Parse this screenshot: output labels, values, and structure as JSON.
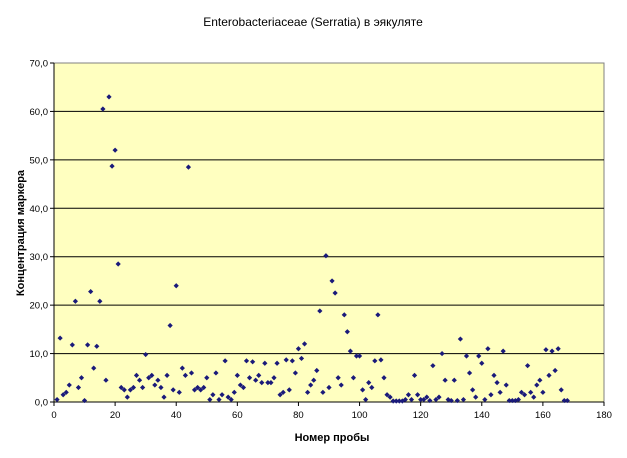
{
  "chart_data": {
    "type": "scatter",
    "title": "Enterobacteriaceae (Serratia) в эякуляте",
    "xlabel": "Номер пробы",
    "ylabel": "Концентрация маркера",
    "xlim": [
      0,
      180
    ],
    "ylim": [
      0,
      70
    ],
    "x_ticks": [
      0,
      20,
      40,
      60,
      80,
      100,
      120,
      140,
      160,
      180
    ],
    "x_tick_labels": [
      "0",
      "20",
      "40",
      "60",
      "80",
      "100",
      "120",
      "140",
      "160",
      "180"
    ],
    "y_ticks": [
      0,
      10,
      20,
      30,
      40,
      50,
      60,
      70
    ],
    "y_tick_labels": [
      "0,0",
      "10,0",
      "20,0",
      "30,0",
      "40,0",
      "50,0",
      "60,0",
      "70,0"
    ],
    "grid": "horizontal",
    "legend": "none",
    "plot_background": "#FFFFC0",
    "marker_color": "#1A1A7A",
    "series": [
      {
        "points": [
          [
            1,
            0.5
          ],
          [
            2,
            13.2
          ],
          [
            3,
            1.5
          ],
          [
            4,
            2
          ],
          [
            5,
            3.5
          ],
          [
            6,
            11.8
          ],
          [
            7,
            20.8
          ],
          [
            8,
            3
          ],
          [
            9,
            5
          ],
          [
            10,
            0.3
          ],
          [
            11,
            11.8
          ],
          [
            12,
            22.8
          ],
          [
            13,
            7
          ],
          [
            14,
            11.5
          ],
          [
            15,
            20.8
          ],
          [
            16,
            60.5
          ],
          [
            17,
            4.5
          ],
          [
            18,
            63
          ],
          [
            19,
            48.7
          ],
          [
            20,
            52
          ],
          [
            21,
            28.5
          ],
          [
            22,
            3
          ],
          [
            23,
            2.5
          ],
          [
            24,
            1
          ],
          [
            25,
            2.5
          ],
          [
            26,
            3
          ],
          [
            27,
            5.5
          ],
          [
            28,
            4.5
          ],
          [
            29,
            3
          ],
          [
            30,
            9.8
          ],
          [
            31,
            5
          ],
          [
            32,
            5.5
          ],
          [
            33,
            3.5
          ],
          [
            34,
            4.5
          ],
          [
            35,
            3
          ],
          [
            36,
            1
          ],
          [
            37,
            5.5
          ],
          [
            38,
            15.8
          ],
          [
            39,
            2.5
          ],
          [
            40,
            24
          ],
          [
            41,
            2
          ],
          [
            42,
            7
          ],
          [
            43,
            5.5
          ],
          [
            44,
            48.5
          ],
          [
            45,
            6
          ],
          [
            46,
            2.5
          ],
          [
            47,
            3
          ],
          [
            48,
            2.5
          ],
          [
            49,
            3
          ],
          [
            50,
            5
          ],
          [
            51,
            0.5
          ],
          [
            52,
            1.5
          ],
          [
            53,
            6
          ],
          [
            54,
            0.5
          ],
          [
            55,
            1.5
          ],
          [
            56,
            8.5
          ],
          [
            57,
            1
          ],
          [
            58,
            0.5
          ],
          [
            59,
            2
          ],
          [
            60,
            5.5
          ],
          [
            61,
            3.5
          ],
          [
            62,
            3
          ],
          [
            63,
            8.5
          ],
          [
            64,
            5
          ],
          [
            65,
            8.3
          ],
          [
            66,
            4.5
          ],
          [
            67,
            5.5
          ],
          [
            68,
            4
          ],
          [
            69,
            8
          ],
          [
            70,
            4
          ],
          [
            71,
            4
          ],
          [
            72,
            5
          ],
          [
            73,
            8
          ],
          [
            74,
            1.5
          ],
          [
            75,
            2
          ],
          [
            76,
            8.7
          ],
          [
            77,
            2.5
          ],
          [
            78,
            8.5
          ],
          [
            79,
            6
          ],
          [
            80,
            11
          ],
          [
            81,
            9
          ],
          [
            82,
            12
          ],
          [
            83,
            2
          ],
          [
            84,
            3.5
          ],
          [
            85,
            4.5
          ],
          [
            86,
            6.5
          ],
          [
            87,
            18.8
          ],
          [
            88,
            2
          ],
          [
            89,
            30.2
          ],
          [
            90,
            3
          ],
          [
            91,
            25
          ],
          [
            92,
            22.5
          ],
          [
            93,
            5
          ],
          [
            94,
            3.5
          ],
          [
            95,
            18
          ],
          [
            96,
            14.5
          ],
          [
            97,
            10.5
          ],
          [
            98,
            5
          ],
          [
            99,
            9.5
          ],
          [
            100,
            9.5
          ],
          [
            101,
            2.5
          ],
          [
            102,
            0.5
          ],
          [
            103,
            4
          ],
          [
            104,
            3
          ],
          [
            105,
            8.5
          ],
          [
            106,
            18
          ],
          [
            107,
            8.7
          ],
          [
            108,
            5
          ],
          [
            109,
            1.5
          ],
          [
            110,
            1
          ],
          [
            111,
            0.2
          ],
          [
            112,
            0.2
          ],
          [
            113,
            0.2
          ],
          [
            114,
            0.2
          ],
          [
            115,
            0.5
          ],
          [
            116,
            1.5
          ],
          [
            117,
            0.5
          ],
          [
            118,
            5.5
          ],
          [
            119,
            1.5
          ],
          [
            120,
            0.5
          ],
          [
            121,
            0.5
          ],
          [
            122,
            1
          ],
          [
            123,
            0.3
          ],
          [
            124,
            7.5
          ],
          [
            125,
            0.5
          ],
          [
            126,
            1
          ],
          [
            127,
            10
          ],
          [
            128,
            4.5
          ],
          [
            129,
            0.5
          ],
          [
            130,
            0.3
          ],
          [
            131,
            4.5
          ],
          [
            132,
            0.3
          ],
          [
            133,
            13
          ],
          [
            134,
            0.5
          ],
          [
            135,
            9.5
          ],
          [
            136,
            6
          ],
          [
            137,
            2.5
          ],
          [
            138,
            1
          ],
          [
            139,
            9.5
          ],
          [
            140,
            8
          ],
          [
            141,
            0.5
          ],
          [
            142,
            11
          ],
          [
            143,
            1.5
          ],
          [
            144,
            5.5
          ],
          [
            145,
            4
          ],
          [
            146,
            2
          ],
          [
            147,
            10.5
          ],
          [
            148,
            3.5
          ],
          [
            149,
            0.3
          ],
          [
            150,
            0.3
          ],
          [
            151,
            0.3
          ],
          [
            152,
            0.5
          ],
          [
            153,
            2
          ],
          [
            154,
            1.5
          ],
          [
            155,
            7.5
          ],
          [
            156,
            2
          ],
          [
            157,
            1
          ],
          [
            158,
            3.5
          ],
          [
            159,
            4.5
          ],
          [
            160,
            2
          ],
          [
            161,
            10.8
          ],
          [
            162,
            5.5
          ],
          [
            163,
            10.5
          ],
          [
            164,
            6.5
          ],
          [
            165,
            11
          ],
          [
            166,
            2.5
          ],
          [
            167,
            0.3
          ],
          [
            168,
            0.3
          ]
        ]
      }
    ]
  }
}
